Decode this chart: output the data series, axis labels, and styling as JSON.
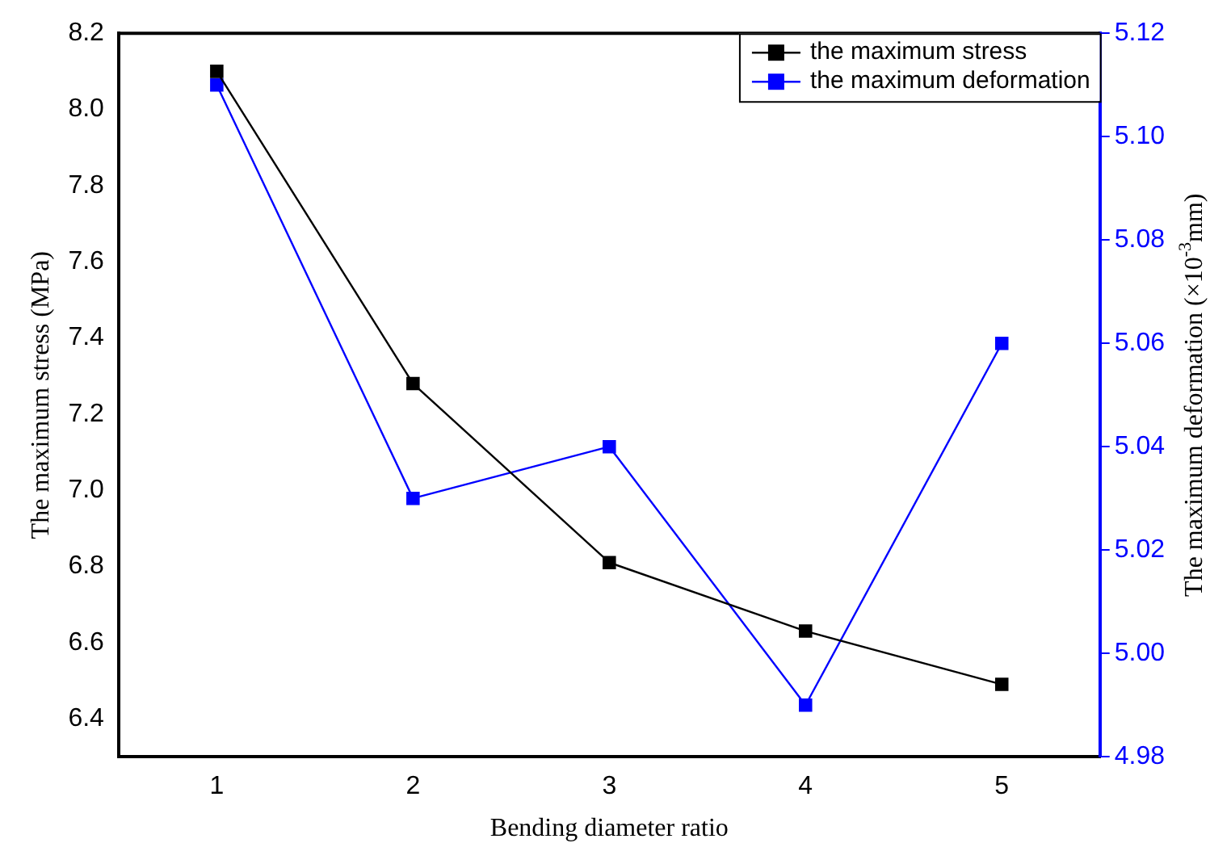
{
  "chart_data": {
    "type": "line",
    "xlabel": "Bending diameter ratio",
    "ylabel": "The maximum stress (MPa)",
    "y2label": "The maximum deformation (×10$^{-3}$mm)",
    "x": [
      1,
      2,
      3,
      4,
      5
    ],
    "series": [
      {
        "name": "the maximum stress",
        "color": "#000000",
        "values": [
          8.1,
          7.28,
          6.81,
          6.63,
          6.49
        ]
      },
      {
        "name": "the maximum deformation",
        "color": "#0000ff",
        "axis": "y2",
        "values": [
          5.11,
          5.03,
          5.04,
          4.99,
          5.06
        ]
      }
    ],
    "xlim": [
      0.5,
      5.5
    ],
    "xticks": [
      1,
      2,
      3,
      4,
      5
    ],
    "ylim": [
      6.3,
      8.2
    ],
    "yticks": [
      6.4,
      6.6,
      6.8,
      {
        "value": 7,
        "label": "7.0"
      },
      7.2,
      7.4,
      7.6,
      7.8,
      {
        "value": 8,
        "label": "8.0"
      },
      8.2
    ],
    "y2lim": [
      4.98,
      5.12
    ],
    "y2ticks": [
      4.98,
      {
        "value": 5,
        "label": "5.00"
      },
      5.02,
      5.04,
      5.06,
      5.08,
      {
        "value": 5.1,
        "label": "5.10"
      },
      5.12
    ],
    "grid": false,
    "legend": "top right",
    "marker": "square",
    "line_style": "solid"
  }
}
